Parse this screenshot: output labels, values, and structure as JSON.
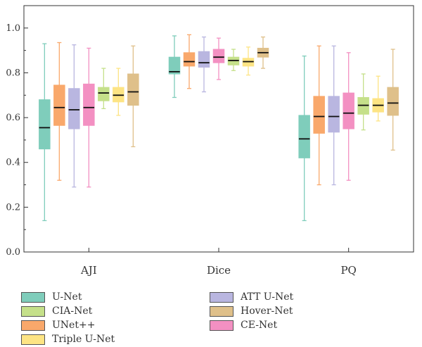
{
  "chart_data": {
    "type": "box",
    "title": "",
    "xlabel": "",
    "ylabel": "",
    "ylim": [
      0,
      1.1
    ],
    "yticks": [
      0.0,
      0.2,
      0.4,
      0.6,
      0.8,
      1.0
    ],
    "ytick_labels": [
      "0.0",
      "0.2",
      "0.4",
      "0.6",
      "0.8",
      "1.0"
    ],
    "categories": [
      "AJI",
      "Dice",
      "PQ"
    ],
    "series": [
      {
        "name": "U-Net",
        "color": "#7fcdbb",
        "boxes": [
          {
            "min": 0.14,
            "q1": 0.46,
            "median": 0.555,
            "q3": 0.68,
            "max": 0.93
          },
          {
            "min": 0.69,
            "q1": 0.795,
            "median": 0.805,
            "q3": 0.87,
            "max": 0.965
          },
          {
            "min": 0.14,
            "q1": 0.42,
            "median": 0.505,
            "q3": 0.61,
            "max": 0.875
          }
        ]
      },
      {
        "name": "UNet++",
        "color": "#f9a86b",
        "boxes": [
          {
            "min": 0.32,
            "q1": 0.565,
            "median": 0.645,
            "q3": 0.745,
            "max": 0.935
          },
          {
            "min": 0.73,
            "q1": 0.83,
            "median": 0.85,
            "q3": 0.89,
            "max": 0.97
          },
          {
            "min": 0.3,
            "q1": 0.53,
            "median": 0.605,
            "q3": 0.695,
            "max": 0.92
          }
        ]
      },
      {
        "name": "ATT U-Net",
        "color": "#b9b6e0",
        "boxes": [
          {
            "min": 0.29,
            "q1": 0.55,
            "median": 0.635,
            "q3": 0.73,
            "max": 0.925
          },
          {
            "min": 0.715,
            "q1": 0.825,
            "median": 0.845,
            "q3": 0.895,
            "max": 0.96
          },
          {
            "min": 0.3,
            "q1": 0.535,
            "median": 0.605,
            "q3": 0.695,
            "max": 0.92
          }
        ]
      },
      {
        "name": "CE-Net",
        "color": "#f390c2",
        "boxes": [
          {
            "min": 0.29,
            "q1": 0.565,
            "median": 0.645,
            "q3": 0.75,
            "max": 0.91
          },
          {
            "min": 0.77,
            "q1": 0.845,
            "median": 0.87,
            "q3": 0.905,
            "max": 0.955
          },
          {
            "min": 0.32,
            "q1": 0.55,
            "median": 0.62,
            "q3": 0.71,
            "max": 0.89
          }
        ]
      },
      {
        "name": "CIA-Net",
        "color": "#c5e08a",
        "boxes": [
          {
            "min": 0.64,
            "q1": 0.675,
            "median": 0.71,
            "q3": 0.735,
            "max": 0.82
          },
          {
            "min": 0.81,
            "q1": 0.835,
            "median": 0.855,
            "q3": 0.87,
            "max": 0.905
          },
          {
            "min": 0.545,
            "q1": 0.615,
            "median": 0.655,
            "q3": 0.69,
            "max": 0.795
          }
        ]
      },
      {
        "name": "Triple U-Net",
        "color": "#fde484",
        "boxes": [
          {
            "min": 0.61,
            "q1": 0.67,
            "median": 0.7,
            "q3": 0.735,
            "max": 0.82
          },
          {
            "min": 0.79,
            "q1": 0.83,
            "median": 0.85,
            "q3": 0.865,
            "max": 0.915
          },
          {
            "min": 0.585,
            "q1": 0.625,
            "median": 0.655,
            "q3": 0.685,
            "max": 0.785
          }
        ]
      },
      {
        "name": "Hover-Net",
        "color": "#dfc08a",
        "boxes": [
          {
            "min": 0.47,
            "q1": 0.655,
            "median": 0.715,
            "q3": 0.795,
            "max": 0.92
          },
          {
            "min": 0.82,
            "q1": 0.87,
            "median": 0.89,
            "q3": 0.91,
            "max": 0.96
          },
          {
            "min": 0.455,
            "q1": 0.61,
            "median": 0.665,
            "q3": 0.735,
            "max": 0.905
          }
        ]
      }
    ],
    "legend": {
      "placement": "bottom",
      "left_column": [
        "U-Net",
        "CIA-Net",
        "UNet++",
        "Triple U-Net"
      ],
      "right_column": [
        "ATT U-Net",
        "Hover-Net",
        "CE-Net"
      ]
    },
    "grid": false
  }
}
